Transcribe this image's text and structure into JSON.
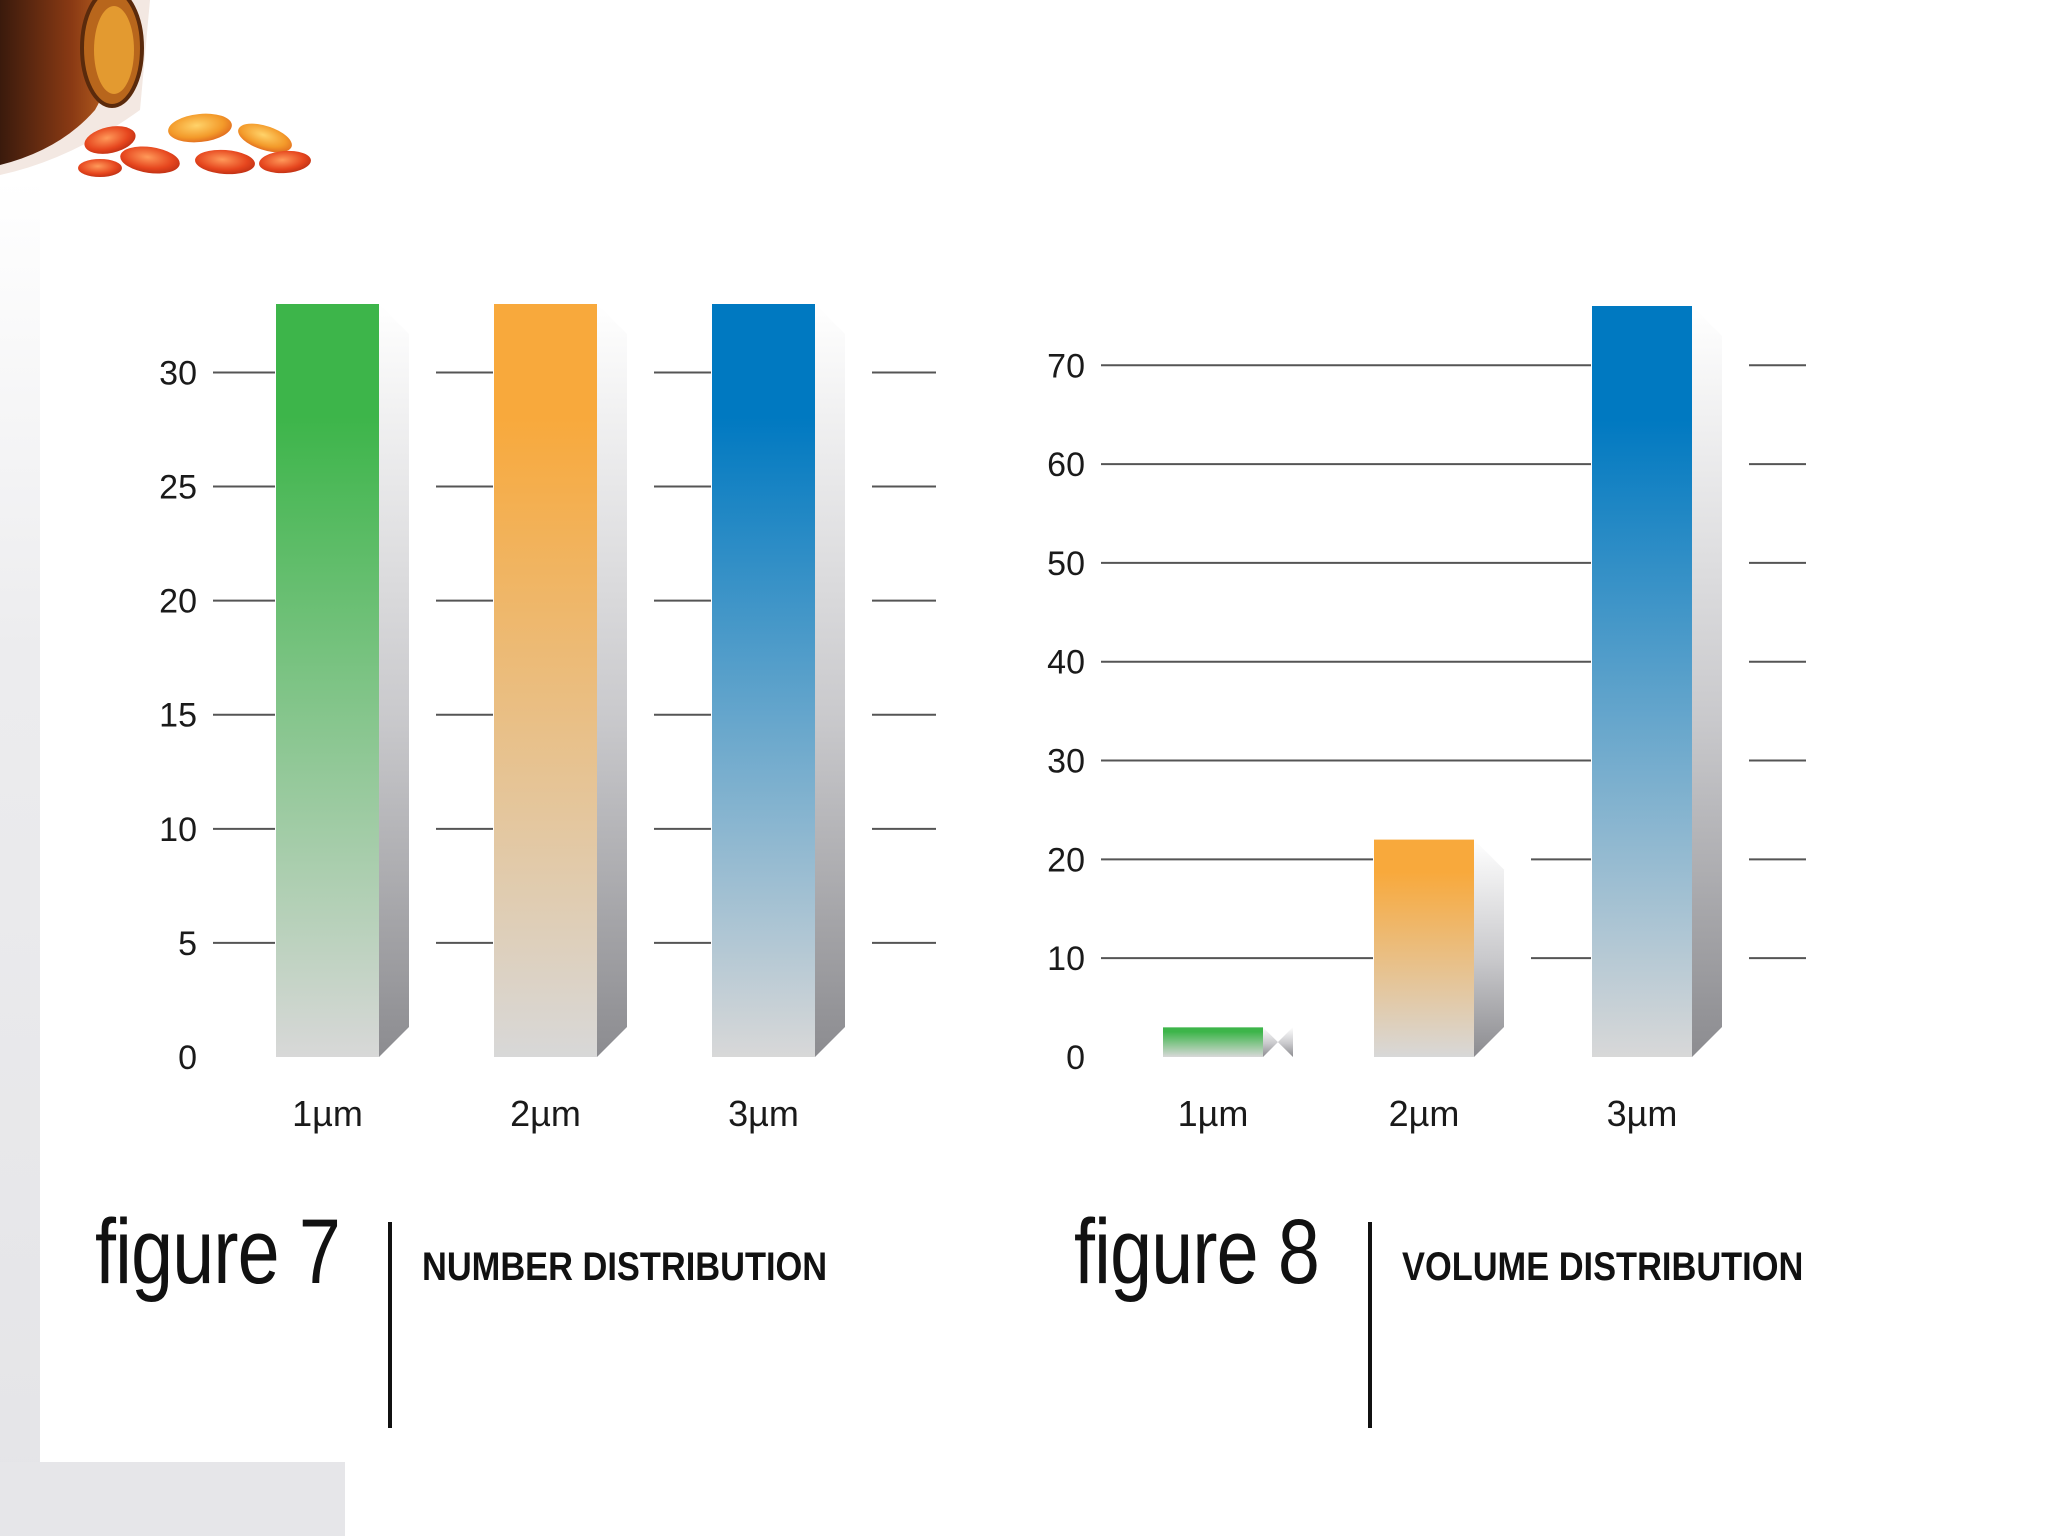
{
  "chart_data": [
    {
      "type": "bar",
      "categories": [
        "1µm",
        "2µm",
        "3µm"
      ],
      "values": [
        33,
        33,
        33
      ],
      "ylim": [
        0,
        33
      ],
      "yticks": [
        0,
        5,
        10,
        15,
        20,
        25,
        30
      ],
      "grid": true,
      "colors": [
        "#3db54a",
        "#f8a93c",
        "#0079c1"
      ],
      "figure_label": "figure 7",
      "caption": "NUMBER DISTRIBUTION"
    },
    {
      "type": "bar",
      "categories": [
        "1µm",
        "2µm",
        "3µm"
      ],
      "values": [
        3,
        22,
        76
      ],
      "ylim": [
        0,
        76
      ],
      "yticks": [
        0,
        10,
        20,
        30,
        40,
        50,
        60,
        70
      ],
      "grid": true,
      "colors": [
        "#3db54a",
        "#f8a93c",
        "#0079c1"
      ],
      "figure_label": "figure 8",
      "caption": "VOLUME DISTRIBUTION"
    }
  ]
}
